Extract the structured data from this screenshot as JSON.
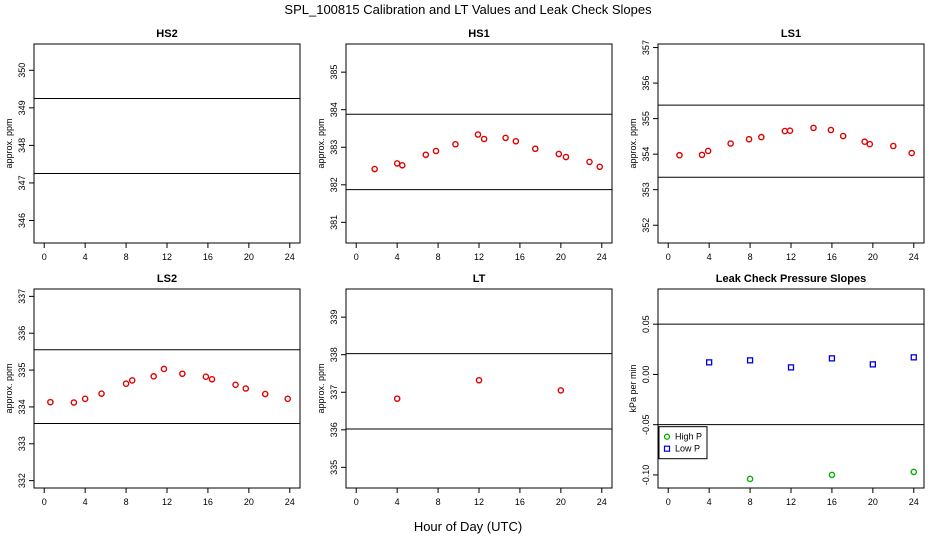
{
  "figure": {
    "title": "SPL_100815  Calibration and LT Values and Leak Check Slopes",
    "xlabel": "Hour of Day (UTC)"
  },
  "colors": {
    "cal": "#e00000",
    "high_p": "#00b000",
    "low_p": "#0000e0",
    "axis": "#000000"
  },
  "chart_data": [
    {
      "type": "scatter",
      "title": "HS2",
      "ylabel": "approx. ppm",
      "xlim": [
        -1,
        25
      ],
      "xticks": [
        0,
        4,
        8,
        12,
        16,
        20,
        24
      ],
      "ylim": [
        345.4,
        350.7
      ],
      "yticks": [
        346,
        347,
        348,
        349,
        350
      ],
      "hlines": [
        349.25,
        347.25
      ],
      "series": [
        {
          "x": [],
          "y": []
        }
      ]
    },
    {
      "type": "scatter",
      "title": "HS1",
      "ylabel": "approx. ppm",
      "xlim": [
        -1,
        25
      ],
      "xticks": [
        0,
        4,
        8,
        12,
        16,
        20,
        24
      ],
      "ylim": [
        380.45,
        385.75
      ],
      "yticks": [
        381,
        382,
        383,
        384,
        385
      ],
      "hlines": [
        383.88,
        381.87
      ],
      "series": [
        {
          "x": [
            1.8,
            4.0,
            4.5,
            6.8,
            7.8,
            9.7,
            11.9,
            12.5,
            14.6,
            15.6,
            17.5,
            19.8,
            20.5,
            22.8,
            23.8
          ],
          "y": [
            382.42,
            382.57,
            382.52,
            382.8,
            382.9,
            383.08,
            383.34,
            383.22,
            383.25,
            383.16,
            382.96,
            382.82,
            382.74,
            382.61,
            382.48
          ]
        }
      ]
    },
    {
      "type": "scatter",
      "title": "LS1",
      "ylabel": "approx. ppm",
      "xlim": [
        -1,
        25
      ],
      "xticks": [
        0,
        4,
        8,
        12,
        16,
        20,
        24
      ],
      "ylim": [
        351.5,
        357.1
      ],
      "yticks": [
        352,
        353,
        354,
        355,
        356,
        357
      ],
      "hlines": [
        355.38,
        353.35
      ],
      "series": [
        {
          "x": [
            1.1,
            3.3,
            3.9,
            6.1,
            7.9,
            9.1,
            11.4,
            11.9,
            14.2,
            15.9,
            17.1,
            19.2,
            19.7,
            22.0,
            23.8
          ],
          "y": [
            353.97,
            353.98,
            354.09,
            354.3,
            354.42,
            354.48,
            354.65,
            354.66,
            354.74,
            354.68,
            354.51,
            354.35,
            354.28,
            354.23,
            354.03
          ]
        }
      ]
    },
    {
      "type": "scatter",
      "title": "LS2",
      "ylabel": "approx. ppm",
      "xlim": [
        -1,
        25
      ],
      "xticks": [
        0,
        4,
        8,
        12,
        16,
        20,
        24
      ],
      "ylim": [
        331.8,
        337.2
      ],
      "yticks": [
        332,
        333,
        334,
        335,
        336,
        337
      ],
      "hlines": [
        335.55,
        333.55
      ],
      "series": [
        {
          "x": [
            0.6,
            2.9,
            4.0,
            5.6,
            8.0,
            8.6,
            10.7,
            11.7,
            13.5,
            15.8,
            16.4,
            18.7,
            19.7,
            21.6,
            23.8
          ],
          "y": [
            334.13,
            334.12,
            334.22,
            334.36,
            334.63,
            334.72,
            334.83,
            335.03,
            334.9,
            334.82,
            334.75,
            334.6,
            334.5,
            334.35,
            334.22
          ]
        }
      ]
    },
    {
      "type": "scatter",
      "title": "LT",
      "ylabel": "approx. ppm",
      "xlim": [
        -1,
        25
      ],
      "xticks": [
        0,
        4,
        8,
        12,
        16,
        20,
        24
      ],
      "ylim": [
        334.45,
        339.75
      ],
      "yticks": [
        335,
        336,
        337,
        338,
        339
      ],
      "hlines": [
        338.03,
        336.02
      ],
      "series": [
        {
          "x": [
            4.0,
            12.0,
            20.0
          ],
          "y": [
            336.83,
            337.32,
            337.05
          ]
        }
      ]
    },
    {
      "type": "scatter",
      "title": "Leak Check Pressure Slopes",
      "ylabel": "kPa per min",
      "xlim": [
        -1,
        25
      ],
      "xticks": [
        0,
        4,
        8,
        12,
        16,
        20,
        24
      ],
      "ylim": [
        -0.113,
        0.085
      ],
      "yticks": [
        -0.1,
        -0.05,
        0.0,
        0.05
      ],
      "ytick_labels": [
        "-0.10",
        "-0.05",
        "0.00",
        "0.05"
      ],
      "hlines": [
        0.05,
        -0.05
      ],
      "legend": {
        "position": "bottom-left",
        "entries": [
          "High P",
          "Low P"
        ]
      },
      "series": [
        {
          "name": "High P",
          "x": [
            8,
            16,
            24
          ],
          "y": [
            -0.104,
            -0.1,
            -0.097
          ]
        },
        {
          "name": "Low P",
          "x": [
            4,
            8,
            12,
            16,
            20,
            24
          ],
          "y": [
            0.012,
            0.014,
            0.007,
            0.016,
            0.01,
            0.017
          ]
        }
      ]
    }
  ]
}
